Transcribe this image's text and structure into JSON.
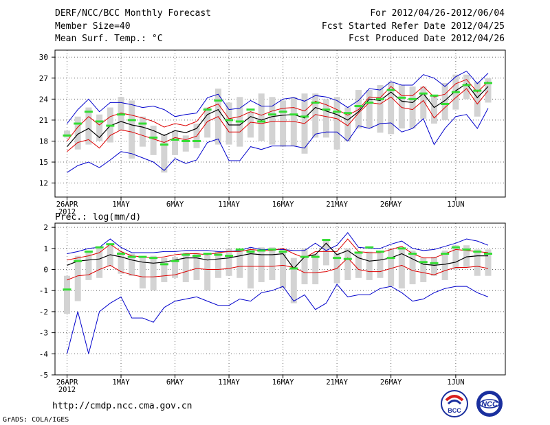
{
  "header": {
    "title": "DERF/NCC/BCC Monthly Forecast",
    "member_size": "Member Size=40",
    "var1_label": "Mean Surf. Temp.: °C",
    "period": "For 2012/04/26-2012/06/04",
    "started": "Fcst Started Refer Date 2012/04/25",
    "produced": "Fcst Produced Date 2012/04/26"
  },
  "footer": {
    "url": "http://cmdp.ncc.cma.gov.cn",
    "grads": "GrADS: COLA/IGES",
    "logo1_text": "BCC",
    "logo2_text": "NCC"
  },
  "colors": {
    "envelope": "#0000cc",
    "std": "#dd0000",
    "mean": "#000000",
    "box": "#d3d3d3",
    "median": "#33dd33",
    "grid": "#666666"
  },
  "chart_data": [
    {
      "type": "line",
      "title": "Mean Surf. Temp.: °C",
      "ylabel": "°C",
      "ylim": [
        10,
        31
      ],
      "yticks": [
        12,
        15,
        18,
        21,
        24,
        27,
        30
      ],
      "xticks": [
        "26APR",
        "1MAY",
        "6MAY",
        "11MAY",
        "16MAY",
        "21MAY",
        "26MAY",
        "1JUN"
      ],
      "xtick_days": [
        1,
        6,
        11,
        16,
        21,
        26,
        31,
        37
      ],
      "year_label": "2012",
      "days": [
        1,
        2,
        3,
        4,
        5,
        6,
        7,
        8,
        9,
        10,
        11,
        12,
        13,
        14,
        15,
        16,
        17,
        18,
        19,
        20,
        21,
        22,
        23,
        24,
        25,
        26,
        27,
        28,
        29,
        30,
        31,
        32,
        33,
        34,
        35,
        36,
        37,
        38,
        39,
        40
      ],
      "series": [
        {
          "name": "max",
          "values": [
            13.5,
            14.5,
            15.0,
            14.2,
            15.3,
            16.5,
            16.2,
            15.6,
            15.0,
            13.8,
            15.5,
            14.8,
            15.3,
            17.8,
            18.3,
            15.2,
            15.2,
            17.2,
            16.8,
            17.3,
            17.3,
            17.3,
            17.0,
            19.0,
            19.3,
            19.3,
            18.0,
            20.2,
            19.8,
            20.5,
            20.6,
            19.3,
            19.8,
            21.2,
            17.5,
            19.8,
            21.5,
            21.8,
            19.8,
            22.7
          ]
        },
        {
          "name": "min",
          "values": [
            20.5,
            22.5,
            24.0,
            22.2,
            23.5,
            23.5,
            23.2,
            22.8,
            23.0,
            22.5,
            21.5,
            21.8,
            22.0,
            24.2,
            24.7,
            22.5,
            22.7,
            23.8,
            23.0,
            23.0,
            24.0,
            24.2,
            23.7,
            24.5,
            24.3,
            23.8,
            22.8,
            23.8,
            25.5,
            25.3,
            26.5,
            26.0,
            26.0,
            27.5,
            27.0,
            25.8,
            27.2,
            28.0,
            26.2,
            27.7
          ]
        },
        {
          "name": "std_lo",
          "values": [
            16.5,
            17.8,
            18.2,
            17.0,
            18.8,
            19.6,
            19.3,
            18.8,
            18.3,
            17.8,
            18.5,
            18.2,
            18.7,
            20.8,
            21.5,
            19.3,
            19.3,
            20.7,
            20.5,
            20.8,
            20.8,
            20.8,
            20.5,
            21.8,
            21.5,
            21.2,
            20.2,
            22.0,
            23.5,
            23.3,
            24.3,
            22.8,
            22.5,
            23.8,
            21.3,
            22.8,
            24.2,
            25.5,
            23.3,
            25.2
          ]
        },
        {
          "name": "std_hi",
          "values": [
            18.0,
            20.0,
            21.5,
            20.3,
            21.5,
            22.0,
            21.7,
            21.3,
            20.8,
            20.0,
            20.5,
            20.2,
            20.8,
            22.7,
            23.3,
            21.2,
            21.5,
            22.2,
            21.7,
            22.3,
            22.7,
            22.8,
            22.3,
            23.7,
            23.2,
            22.5,
            21.7,
            22.5,
            24.3,
            24.2,
            25.8,
            24.5,
            24.5,
            25.8,
            24.3,
            24.7,
            26.2,
            26.8,
            25.0,
            26.5
          ]
        },
        {
          "name": "ens_mean",
          "values": [
            17.2,
            19.0,
            19.8,
            18.5,
            20.2,
            20.8,
            20.3,
            20.0,
            19.5,
            18.8,
            19.5,
            19.2,
            19.8,
            21.8,
            22.5,
            20.3,
            20.3,
            21.5,
            21.0,
            21.5,
            21.7,
            21.8,
            21.3,
            22.8,
            22.3,
            21.8,
            21.0,
            22.2,
            24.0,
            23.8,
            25.0,
            23.7,
            23.5,
            24.8,
            22.8,
            23.8,
            25.2,
            26.2,
            24.2,
            25.8
          ]
        },
        {
          "name": "box_hi",
          "values": [
            19.5,
            21.5,
            22.8,
            21.8,
            22.8,
            24.3,
            23.8,
            21.5,
            20.2,
            19.0,
            19.5,
            18.8,
            20.5,
            22.8,
            25.5,
            23.5,
            24.3,
            22.2,
            24.8,
            24.3,
            23.8,
            24.3,
            24.8,
            24.8,
            24.0,
            24.3,
            22.8,
            25.3,
            25.3,
            26.0,
            26.5,
            26.0,
            25.8,
            25.8,
            24.5,
            26.3,
            27.5,
            27.5,
            26.5,
            27.0
          ]
        },
        {
          "name": "box_lo",
          "values": [
            18.5,
            16.8,
            17.5,
            18.0,
            17.8,
            19.5,
            15.5,
            17.2,
            16.0,
            13.5,
            16.0,
            16.5,
            17.0,
            18.5,
            17.5,
            17.5,
            17.2,
            18.5,
            18.0,
            17.5,
            17.2,
            17.3,
            16.2,
            18.5,
            18.5,
            16.8,
            18.0,
            19.8,
            19.8,
            19.2,
            19.0,
            19.8,
            19.8,
            21.2,
            20.5,
            21.0,
            22.5,
            24.0,
            21.5,
            23.5
          ]
        },
        {
          "name": "median",
          "values": [
            18.8,
            20.5,
            22.2,
            20.8,
            20.2,
            21.8,
            21.0,
            20.5,
            18.5,
            17.5,
            18.2,
            18.0,
            18.0,
            22.5,
            23.8,
            21.0,
            20.8,
            22.5,
            20.8,
            21.8,
            22.2,
            21.8,
            21.5,
            23.5,
            22.5,
            22.2,
            22.0,
            23.0,
            23.5,
            24.0,
            25.3,
            24.2,
            24.0,
            24.8,
            24.5,
            23.3,
            25.0,
            26.0,
            25.2,
            26.3
          ]
        }
      ]
    },
    {
      "type": "line",
      "title": "Prec.: log(mm/d)",
      "ylabel": "log(mm/d)",
      "ylim": [
        -5,
        2.2
      ],
      "yticks": [
        -5,
        -4,
        -3,
        -2,
        -1,
        0,
        1,
        2
      ],
      "xticks": [
        "26APR",
        "1MAY",
        "6MAY",
        "11MAY",
        "16MAY",
        "21MAY",
        "26MAY",
        "1JUN"
      ],
      "xtick_days": [
        1,
        6,
        11,
        16,
        21,
        26,
        31,
        37
      ],
      "year_label": "2012",
      "days": [
        1,
        2,
        3,
        4,
        5,
        6,
        7,
        8,
        9,
        10,
        11,
        12,
        13,
        14,
        15,
        16,
        17,
        18,
        19,
        20,
        21,
        22,
        23,
        24,
        25,
        26,
        27,
        28,
        29,
        30,
        31,
        32,
        33,
        34,
        35,
        36,
        37,
        38,
        39,
        40
      ],
      "series": [
        {
          "name": "max",
          "values": [
            0.75,
            0.85,
            1.0,
            1.05,
            1.45,
            1.05,
            0.8,
            0.8,
            0.8,
            0.85,
            0.85,
            0.9,
            0.9,
            0.9,
            0.85,
            0.85,
            0.9,
            1.05,
            0.95,
            0.95,
            0.95,
            0.9,
            0.9,
            1.25,
            0.9,
            1.15,
            1.75,
            1.05,
            1.0,
            1.0,
            1.2,
            1.35,
            1.0,
            0.9,
            0.95,
            1.1,
            1.25,
            1.45,
            1.35,
            1.15
          ]
        },
        {
          "name": "min",
          "values": [
            -4.0,
            -2.0,
            -4.0,
            -2.0,
            -1.6,
            -1.3,
            -2.3,
            -2.3,
            -2.5,
            -1.8,
            -1.5,
            -1.4,
            -1.3,
            -1.5,
            -1.7,
            -1.7,
            -1.4,
            -1.5,
            -1.1,
            -1.0,
            -0.8,
            -1.5,
            -1.2,
            -1.9,
            -1.6,
            -0.7,
            -1.3,
            -1.2,
            -1.2,
            -0.9,
            -0.8,
            -1.1,
            -1.5,
            -1.4,
            -1.1,
            -0.9,
            -0.8,
            -0.8,
            -1.1,
            -1.3
          ]
        },
        {
          "name": "std_lo",
          "values": [
            -0.5,
            -0.3,
            -0.25,
            0.0,
            0.2,
            -0.1,
            -0.25,
            -0.35,
            -0.35,
            -0.3,
            -0.25,
            -0.1,
            0.05,
            0.0,
            0.0,
            0.05,
            0.15,
            0.15,
            0.15,
            0.15,
            0.2,
            0.1,
            -0.15,
            -0.15,
            -0.1,
            0.05,
            0.55,
            0.0,
            -0.1,
            -0.1,
            0.05,
            0.2,
            -0.05,
            -0.15,
            -0.25,
            -0.05,
            0.1,
            0.1,
            0.15,
            0.05
          ]
        },
        {
          "name": "std_hi",
          "values": [
            0.45,
            0.55,
            0.65,
            0.8,
            1.2,
            0.85,
            0.65,
            0.6,
            0.55,
            0.6,
            0.7,
            0.75,
            0.75,
            0.7,
            0.8,
            0.85,
            0.85,
            0.95,
            0.9,
            0.9,
            1.0,
            0.75,
            0.55,
            0.85,
            0.85,
            0.85,
            1.45,
            0.85,
            0.8,
            0.8,
            0.95,
            1.1,
            0.75,
            0.55,
            0.55,
            0.75,
            0.95,
            0.9,
            0.85,
            0.8
          ]
        },
        {
          "name": "ens_mean",
          "values": [
            0.2,
            0.4,
            0.45,
            0.5,
            0.7,
            0.6,
            0.45,
            0.35,
            0.3,
            0.35,
            0.45,
            0.55,
            0.55,
            0.45,
            0.5,
            0.55,
            0.65,
            0.75,
            0.7,
            0.7,
            0.75,
            0.05,
            0.6,
            0.7,
            1.25,
            0.7,
            0.9,
            0.55,
            0.4,
            0.45,
            0.55,
            0.75,
            0.5,
            0.25,
            0.2,
            0.25,
            0.35,
            0.6,
            0.65,
            0.65
          ]
        },
        {
          "name": "box_hi",
          "values": [
            -0.3,
            0.65,
            0.9,
            1.1,
            1.15,
            0.85,
            0.75,
            0.6,
            0.65,
            0.55,
            0.6,
            0.8,
            0.8,
            0.7,
            0.85,
            1.0,
            0.85,
            1.0,
            1.05,
            1.05,
            1.0,
            0.55,
            1.0,
            0.75,
            1.4,
            0.8,
            1.0,
            0.75,
            0.85,
            0.85,
            1.0,
            1.0,
            0.9,
            0.55,
            0.6,
            0.9,
            1.15,
            1.15,
            0.95,
            0.95
          ]
        },
        {
          "name": "box_lo",
          "values": [
            -2.1,
            -1.5,
            -0.5,
            -0.4,
            0.15,
            -0.2,
            -0.3,
            -0.9,
            -1.0,
            -0.6,
            -0.4,
            -0.6,
            -0.5,
            -1.0,
            -0.4,
            -0.3,
            -0.4,
            -0.9,
            -0.6,
            -0.5,
            -0.9,
            -1.6,
            -0.7,
            -0.7,
            0.2,
            -0.65,
            -0.5,
            -0.4,
            -0.5,
            -0.4,
            -0.8,
            -0.9,
            -0.7,
            -0.6,
            -0.3,
            -0.5,
            0.0,
            0.1,
            -0.3,
            -0.3
          ]
        },
        {
          "name": "median",
          "values": [
            -0.95,
            0.4,
            0.85,
            1.05,
            1.2,
            0.75,
            0.6,
            0.6,
            0.55,
            0.25,
            0.4,
            0.7,
            0.65,
            0.75,
            0.7,
            0.65,
            0.95,
            0.85,
            0.9,
            0.95,
            0.85,
            0.05,
            0.6,
            0.6,
            1.4,
            0.55,
            0.5,
            0.8,
            1.05,
            0.85,
            0.55,
            1.0,
            0.75,
            0.35,
            0.3,
            0.75,
            1.05,
            0.95,
            0.85,
            0.75
          ]
        }
      ]
    }
  ]
}
